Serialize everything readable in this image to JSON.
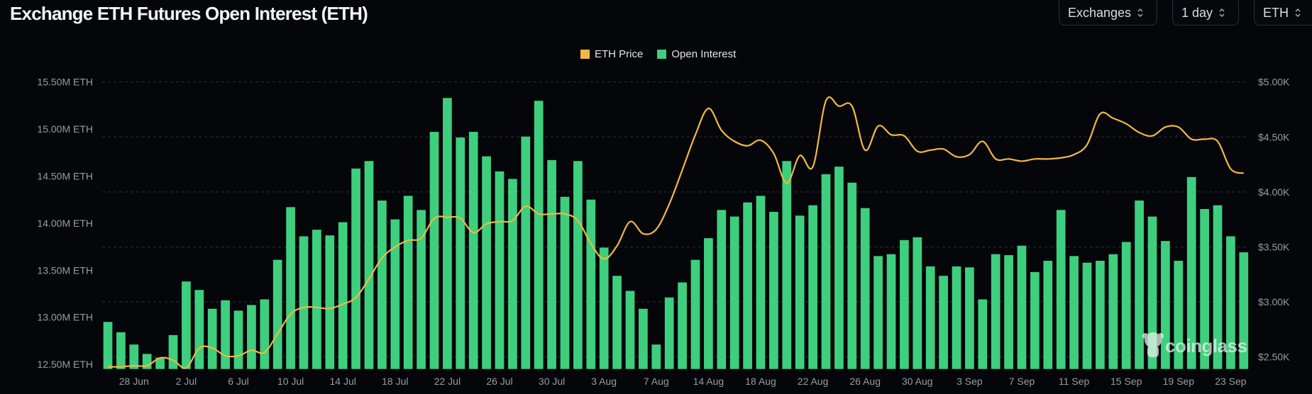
{
  "title": "Exchange ETH Futures Open Interest (ETH)",
  "controls": {
    "exchanges": "Exchanges",
    "interval": "1 day",
    "unit": "ETH"
  },
  "watermark": "coinglass",
  "colors": {
    "background": "#05060a",
    "open_interest": "#3ecf7e",
    "eth_price": "#f0b940",
    "grid": "#2e3038"
  },
  "chart_data": {
    "type": "bar+line",
    "title": "Exchange ETH Futures Open Interest (ETH)",
    "legend": {
      "placement": "top-center",
      "entries": [
        "ETH Price",
        "Open Interest"
      ]
    },
    "grid": true,
    "x_tick_labels": [
      "28 Jun",
      "2 Jul",
      "6 Jul",
      "10 Jul",
      "14 Jul",
      "18 Jul",
      "22 Jul",
      "26 Jul",
      "30 Jul",
      "3 Aug",
      "7 Aug",
      "14 Aug",
      "18 Aug",
      "22 Aug",
      "26 Aug",
      "30 Aug",
      "3 Sep",
      "7 Sep",
      "11 Sep",
      "15 Sep",
      "19 Sep",
      "23 Sep"
    ],
    "categories": [
      "26 Jun",
      "27 Jun",
      "28 Jun",
      "29 Jun",
      "30 Jun",
      "1 Jul",
      "2 Jul",
      "3 Jul",
      "4 Jul",
      "5 Jul",
      "6 Jul",
      "7 Jul",
      "8 Jul",
      "9 Jul",
      "10 Jul",
      "11 Jul",
      "12 Jul",
      "13 Jul",
      "14 Jul",
      "15 Jul",
      "16 Jul",
      "17 Jul",
      "18 Jul",
      "19 Jul",
      "20 Jul",
      "21 Jul",
      "22 Jul",
      "23 Jul",
      "24 Jul",
      "25 Jul",
      "26 Jul",
      "27 Jul",
      "28 Jul",
      "29 Jul",
      "30 Jul",
      "31 Jul",
      "1 Aug",
      "2 Aug",
      "3 Aug",
      "4 Aug",
      "5 Aug",
      "6 Aug",
      "7 Aug",
      "8 Aug",
      "9 Aug",
      "10 Aug",
      "14 Aug",
      "15 Aug",
      "16 Aug",
      "17 Aug",
      "18 Aug",
      "19 Aug",
      "20 Aug",
      "21 Aug",
      "22 Aug",
      "23 Aug",
      "24 Aug",
      "25 Aug",
      "26 Aug",
      "27 Aug",
      "28 Aug",
      "29 Aug",
      "30 Aug",
      "31 Aug",
      "1 Sep",
      "2 Sep",
      "3 Sep",
      "4 Sep",
      "5 Sep",
      "6 Sep",
      "7 Sep",
      "8 Sep",
      "9 Sep",
      "10 Sep",
      "11 Sep",
      "12 Sep",
      "13 Sep",
      "14 Sep",
      "15 Sep",
      "16 Sep",
      "17 Sep",
      "18 Sep",
      "19 Sep",
      "20 Sep",
      "21 Sep",
      "22 Sep",
      "23 Sep",
      "24 Sep"
    ],
    "left_axis": {
      "ticks": [
        "15.50M ETH",
        "15.00M ETH",
        "14.50M ETH",
        "14.00M ETH",
        "13.50M ETH",
        "13.00M ETH",
        "12.50M ETH"
      ],
      "tick_values": [
        15.5,
        15.0,
        14.5,
        14.0,
        13.5,
        13.0,
        12.5
      ],
      "ylim": [
        12.45,
        15.5
      ],
      "unit": "M ETH"
    },
    "right_axis": {
      "ticks": [
        "$5.00K",
        "$4.50K",
        "$4.00K",
        "$3.50K",
        "$3.00K",
        "$2.50K"
      ],
      "tick_values": [
        5.0,
        4.5,
        4.0,
        3.5,
        3.0,
        2.5
      ],
      "ylim": [
        2.39,
        5.0
      ],
      "unit": "$K"
    },
    "series": [
      {
        "name": "Open Interest",
        "type": "bar",
        "axis": "left",
        "values": [
          12.95,
          12.84,
          12.71,
          12.61,
          12.57,
          12.81,
          13.38,
          13.29,
          13.09,
          13.18,
          13.07,
          13.13,
          13.19,
          13.61,
          14.17,
          13.86,
          13.93,
          13.87,
          14.01,
          14.58,
          14.66,
          14.24,
          14.04,
          14.29,
          14.14,
          14.97,
          15.33,
          14.91,
          14.97,
          14.71,
          14.55,
          14.47,
          14.92,
          15.3,
          14.67,
          14.28,
          14.66,
          14.25,
          13.74,
          13.44,
          13.28,
          13.09,
          12.71,
          13.21,
          13.37,
          13.61,
          13.84,
          14.14,
          14.07,
          14.22,
          14.29,
          14.12,
          14.66,
          14.08,
          14.19,
          14.52,
          14.6,
          14.43,
          14.16,
          13.65,
          13.67,
          13.82,
          13.85,
          13.54,
          13.44,
          13.54,
          13.53,
          13.19,
          13.67,
          13.66,
          13.76,
          13.48,
          13.6,
          14.14,
          13.65,
          13.58,
          13.6,
          13.67,
          13.8,
          14.24,
          14.07,
          13.81,
          13.6,
          14.49,
          14.15,
          14.19,
          13.86,
          13.69
        ]
      },
      {
        "name": "ETH Price",
        "type": "line",
        "axis": "right",
        "values": [
          2.41,
          2.41,
          2.42,
          2.42,
          2.49,
          2.47,
          2.4,
          2.58,
          2.58,
          2.51,
          2.51,
          2.56,
          2.54,
          2.71,
          2.89,
          2.95,
          2.95,
          2.94,
          2.98,
          3.04,
          3.21,
          3.4,
          3.5,
          3.56,
          3.58,
          3.76,
          3.77,
          3.76,
          3.63,
          3.71,
          3.73,
          3.74,
          3.87,
          3.8,
          3.8,
          3.8,
          3.74,
          3.53,
          3.39,
          3.51,
          3.73,
          3.62,
          3.66,
          3.89,
          4.2,
          4.52,
          4.76,
          4.56,
          4.46,
          4.42,
          4.47,
          4.35,
          4.08,
          4.33,
          4.23,
          4.83,
          4.78,
          4.78,
          4.38,
          4.6,
          4.52,
          4.51,
          4.37,
          4.38,
          4.39,
          4.32,
          4.34,
          4.46,
          4.3,
          4.3,
          4.28,
          4.3,
          4.3,
          4.31,
          4.34,
          4.43,
          4.71,
          4.67,
          4.62,
          4.54,
          4.51,
          4.59,
          4.59,
          4.48,
          4.48,
          4.46,
          4.21,
          4.17
        ]
      }
    ]
  }
}
